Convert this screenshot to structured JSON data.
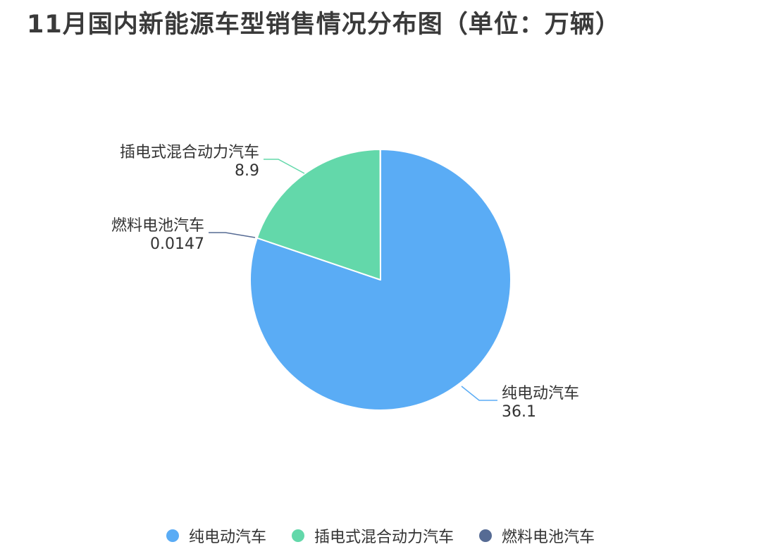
{
  "chart_data": {
    "type": "pie",
    "title": "11月国内新能源车型销售情况分布图（单位：万辆）",
    "slices": [
      {
        "label": "纯电动汽车",
        "value": 36.1,
        "display_value": "36.1",
        "color": "#5aacf5"
      },
      {
        "label": "插电式混合动力汽车",
        "value": 8.9,
        "display_value": "8.9",
        "color": "#63d8aa"
      },
      {
        "label": "燃料电池汽车",
        "value": 0.0147,
        "display_value": "0.0147",
        "color": "#566b94"
      }
    ],
    "legend_position": "bottom-center"
  }
}
